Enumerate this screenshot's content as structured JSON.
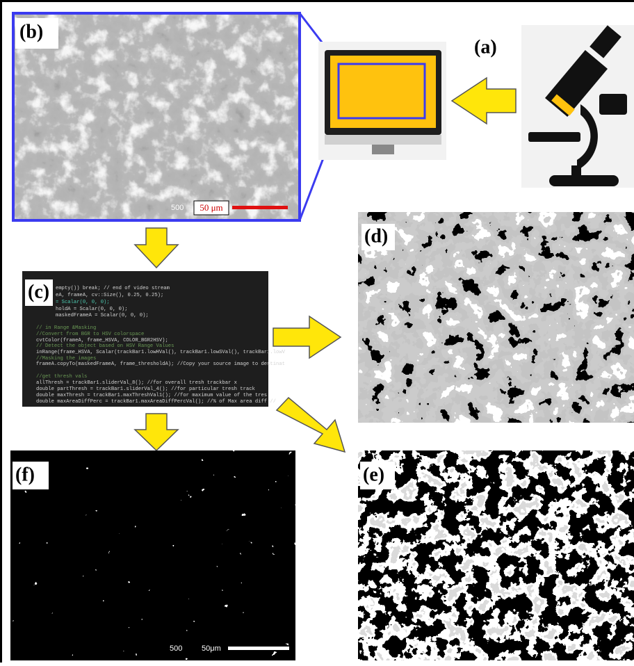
{
  "panels": {
    "a": {
      "label": "(a)"
    },
    "b": {
      "label": "(b)",
      "magnification": "500",
      "scale_bar": "50 μm"
    },
    "c": {
      "label": "(c)",
      "code": [
        "empty()) break; // end of video stream",
        "eA, frameA, cv::Size(), 0.25, 0.25);",
        "= Scalar(0, 0, 0);",
        "holdA = Scalar(0, 0, 0);",
        "maskedFrameA = Scalar(0, 0, 0);",
        "//                                  in Range &Masking",
        "//Convert from BGR to HSV colorspace",
        "cvtColor(frameA, frame_HSVA, COLOR_BGR2HSV);",
        "// Detect the object based on HSV Range Values",
        "inRange(frame_HSVA, Scalar(trackBar1.lowHVal(), trackBar1.lowSVal(), trackBar1.lowV",
        "//Masking the images",
        "frameA.copyTo(maskedFrameA, frame_thresholdA); //Copy your source image to destinat",
        "//get thresh vals",
        "allThresh = trackBar1.sliderVal_8();          //for overall tresh trackbar x",
        "double partThresh = trackBar1.sliderVal_4();        //for particular tresh track",
        "double maxThresh = trackBar1.maxThreshVal1();     //for maximum value of the tres",
        "double maxAreaDiffPerc = trackBar1.maxAreaDiffPercVal();     //% of Max area diff //"
      ]
    },
    "d": {
      "label": "(d)"
    },
    "e": {
      "label": "(e)"
    },
    "f": {
      "label": "(f)",
      "magnification": "500",
      "scale_bar": "50μm"
    }
  }
}
